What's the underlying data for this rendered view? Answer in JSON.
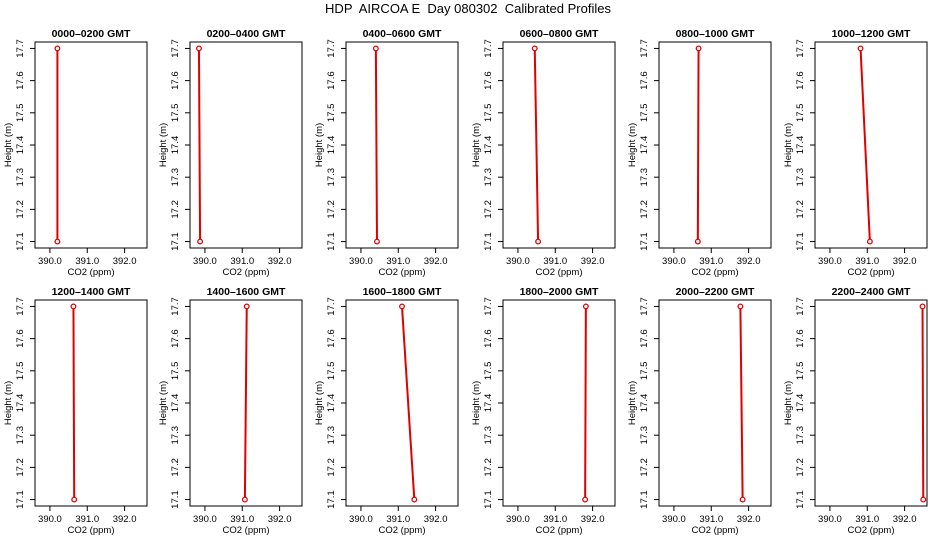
{
  "title": "HDP  AIRCOA E  Day 080302  Calibrated Profiles",
  "chart_data": [
    {
      "type": "line",
      "title": "0000–0200 GMT",
      "xlabel": "CO2 (ppm)",
      "ylabel": "Height (m)",
      "xlim": [
        389.6,
        392.6
      ],
      "ylim": [
        17.08,
        17.72
      ],
      "xticks": [
        "390.0",
        "391.0",
        "392.0"
      ],
      "yticks": [
        "17.1",
        "17.2",
        "17.3",
        "17.4",
        "17.5",
        "17.6",
        "17.7"
      ],
      "points": [
        {
          "x": 390.2,
          "y": 17.1
        },
        {
          "x": 390.2,
          "y": 17.7
        }
      ],
      "color": "#e00000"
    },
    {
      "type": "line",
      "title": "0200–0400 GMT",
      "xlabel": "CO2 (ppm)",
      "ylabel": "Height (m)",
      "xlim": [
        389.6,
        392.6
      ],
      "ylim": [
        17.08,
        17.72
      ],
      "xticks": [
        "390.0",
        "391.0",
        "392.0"
      ],
      "yticks": [
        "17.1",
        "17.2",
        "17.3",
        "17.4",
        "17.5",
        "17.6",
        "17.7"
      ],
      "points": [
        {
          "x": 389.87,
          "y": 17.1
        },
        {
          "x": 389.84,
          "y": 17.7
        }
      ],
      "color": "#e00000"
    },
    {
      "type": "line",
      "title": "0400–0600 GMT",
      "xlabel": "CO2 (ppm)",
      "ylabel": "Height (m)",
      "xlim": [
        389.6,
        392.6
      ],
      "ylim": [
        17.08,
        17.72
      ],
      "xticks": [
        "390.0",
        "391.0",
        "392.0"
      ],
      "yticks": [
        "17.1",
        "17.2",
        "17.3",
        "17.4",
        "17.5",
        "17.6",
        "17.7"
      ],
      "points": [
        {
          "x": 390.43,
          "y": 17.1
        },
        {
          "x": 390.4,
          "y": 17.7
        }
      ],
      "color": "#e00000"
    },
    {
      "type": "line",
      "title": "0600–0800 GMT",
      "xlabel": "CO2 (ppm)",
      "ylabel": "Height (m)",
      "xlim": [
        389.6,
        392.6
      ],
      "ylim": [
        17.08,
        17.72
      ],
      "xticks": [
        "390.0",
        "391.0",
        "392.0"
      ],
      "yticks": [
        "17.1",
        "17.2",
        "17.3",
        "17.4",
        "17.5",
        "17.6",
        "17.7"
      ],
      "points": [
        {
          "x": 390.54,
          "y": 17.1
        },
        {
          "x": 390.45,
          "y": 17.7
        }
      ],
      "color": "#e00000"
    },
    {
      "type": "line",
      "title": "0800–1000 GMT",
      "xlabel": "CO2 (ppm)",
      "ylabel": "Height (m)",
      "xlim": [
        389.6,
        392.6
      ],
      "ylim": [
        17.08,
        17.72
      ],
      "xticks": [
        "390.0",
        "391.0",
        "392.0"
      ],
      "yticks": [
        "17.1",
        "17.2",
        "17.3",
        "17.4",
        "17.5",
        "17.6",
        "17.7"
      ],
      "points": [
        {
          "x": 390.64,
          "y": 17.1
        },
        {
          "x": 390.66,
          "y": 17.7
        }
      ],
      "color": "#e00000"
    },
    {
      "type": "line",
      "title": "1000–1200 GMT",
      "xlabel": "CO2 (ppm)",
      "ylabel": "Height (m)",
      "xlim": [
        389.6,
        392.6
      ],
      "ylim": [
        17.08,
        17.72
      ],
      "xticks": [
        "390.0",
        "391.0",
        "392.0"
      ],
      "yticks": [
        "17.1",
        "17.2",
        "17.3",
        "17.4",
        "17.5",
        "17.6",
        "17.7"
      ],
      "points": [
        {
          "x": 391.07,
          "y": 17.1
        },
        {
          "x": 390.82,
          "y": 17.7
        }
      ],
      "color": "#e00000"
    },
    {
      "type": "line",
      "title": "1200–1400 GMT",
      "xlabel": "CO2 (ppm)",
      "ylabel": "Height (m)",
      "xlim": [
        389.6,
        392.6
      ],
      "ylim": [
        17.08,
        17.72
      ],
      "xticks": [
        "390.0",
        "391.0",
        "392.0"
      ],
      "yticks": [
        "17.1",
        "17.2",
        "17.3",
        "17.4",
        "17.5",
        "17.6",
        "17.7"
      ],
      "points": [
        {
          "x": 390.65,
          "y": 17.1
        },
        {
          "x": 390.63,
          "y": 17.7
        }
      ],
      "color": "#e00000"
    },
    {
      "type": "line",
      "title": "1400–1600 GMT",
      "xlabel": "CO2 (ppm)",
      "ylabel": "Height (m)",
      "xlim": [
        389.6,
        392.6
      ],
      "ylim": [
        17.08,
        17.72
      ],
      "xticks": [
        "390.0",
        "391.0",
        "392.0"
      ],
      "yticks": [
        "17.1",
        "17.2",
        "17.3",
        "17.4",
        "17.5",
        "17.6",
        "17.7"
      ],
      "points": [
        {
          "x": 391.07,
          "y": 17.1
        },
        {
          "x": 391.12,
          "y": 17.7
        }
      ],
      "color": "#e00000"
    },
    {
      "type": "line",
      "title": "1600–1800 GMT",
      "xlabel": "CO2 (ppm)",
      "ylabel": "Height (m)",
      "xlim": [
        389.6,
        392.6
      ],
      "ylim": [
        17.08,
        17.72
      ],
      "xticks": [
        "390.0",
        "391.0",
        "392.0"
      ],
      "yticks": [
        "17.1",
        "17.2",
        "17.3",
        "17.4",
        "17.5",
        "17.6",
        "17.7"
      ],
      "points": [
        {
          "x": 391.43,
          "y": 17.1
        },
        {
          "x": 391.1,
          "y": 17.7
        }
      ],
      "color": "#e00000"
    },
    {
      "type": "line",
      "title": "1800–2000 GMT",
      "xlabel": "CO2 (ppm)",
      "ylabel": "Height (m)",
      "xlim": [
        389.6,
        392.6
      ],
      "ylim": [
        17.08,
        17.72
      ],
      "xticks": [
        "390.0",
        "391.0",
        "392.0"
      ],
      "yticks": [
        "17.1",
        "17.2",
        "17.3",
        "17.4",
        "17.5",
        "17.6",
        "17.7"
      ],
      "points": [
        {
          "x": 391.8,
          "y": 17.1
        },
        {
          "x": 391.82,
          "y": 17.7
        }
      ],
      "color": "#e00000"
    },
    {
      "type": "line",
      "title": "2000–2200 GMT",
      "xlabel": "CO2 (ppm)",
      "ylabel": "Height (m)",
      "xlim": [
        389.6,
        392.6
      ],
      "ylim": [
        17.08,
        17.72
      ],
      "xticks": [
        "390.0",
        "391.0",
        "392.0"
      ],
      "yticks": [
        "17.1",
        "17.2",
        "17.3",
        "17.4",
        "17.5",
        "17.6",
        "17.7"
      ],
      "points": [
        {
          "x": 391.84,
          "y": 17.1
        },
        {
          "x": 391.78,
          "y": 17.7
        }
      ],
      "color": "#e00000"
    },
    {
      "type": "line",
      "title": "2200–2400 GMT",
      "xlabel": "CO2 (ppm)",
      "ylabel": "Height (m)",
      "xlim": [
        389.6,
        392.6
      ],
      "ylim": [
        17.08,
        17.72
      ],
      "xticks": [
        "390.0",
        "391.0",
        "392.0"
      ],
      "yticks": [
        "17.1",
        "17.2",
        "17.3",
        "17.4",
        "17.5",
        "17.6",
        "17.7"
      ],
      "points": [
        {
          "x": 392.5,
          "y": 17.1
        },
        {
          "x": 392.48,
          "y": 17.7
        }
      ],
      "color": "#e00000"
    }
  ]
}
